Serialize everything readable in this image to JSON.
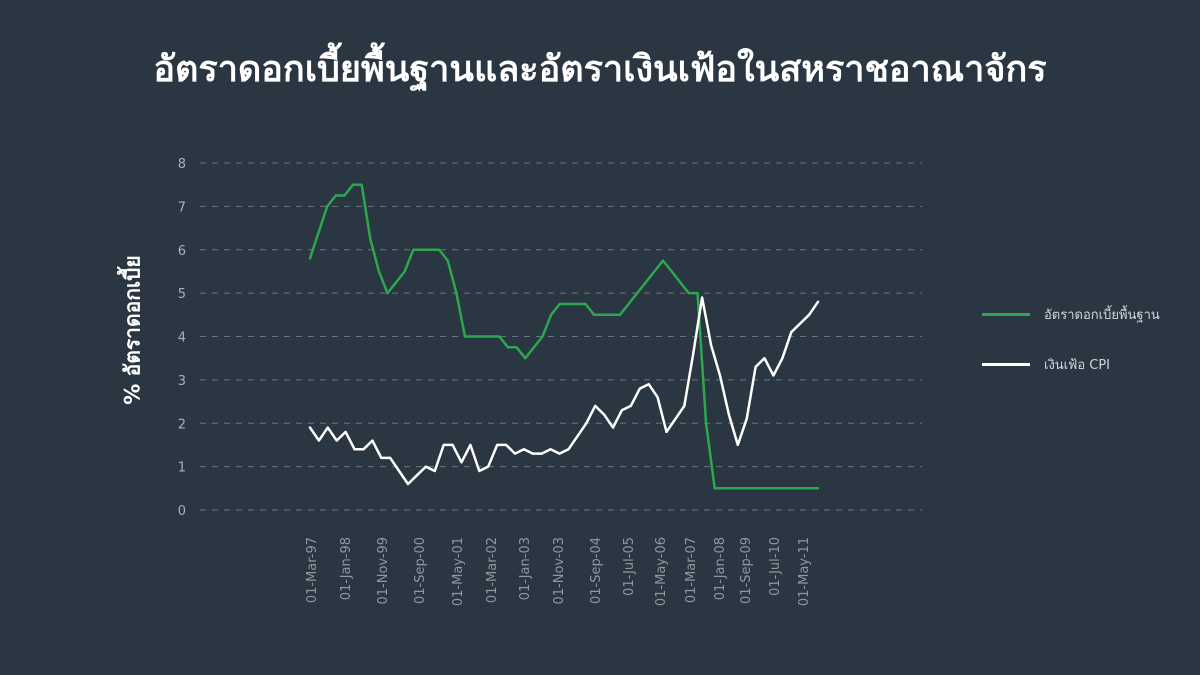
{
  "chart_data": {
    "type": "line",
    "title": "อัตราดอกเบี้ยพื้นฐานและอัตราเงินเฟ้อในสหราชอาณาจักร",
    "xlabel": "",
    "ylabel": "% อัตราดอกเบี้ย",
    "ylim": [
      0,
      8
    ],
    "yticks": [
      0,
      1,
      2,
      3,
      4,
      5,
      6,
      7,
      8
    ],
    "grid": true,
    "legend_position": "right",
    "x_tick_labels": [
      "01-Mar-97",
      "01-Jan-98",
      "01-Nov-99",
      "01-Sep-00",
      "01-May-01",
      "01-Mar-02",
      "01-Jan-03",
      "01-Nov-03",
      "01-Sep-04",
      "01-Jul-05",
      "01-May-06",
      "01-Mar-07",
      "01-Jan-08",
      "01-Sep-09",
      "01-Jul-10",
      "01-May-11"
    ],
    "series": [
      {
        "name": "อัตราดอกเบี้ยพื้นฐาน",
        "color": "#2ea64f",
        "values": [
          5.8,
          6.4,
          7.0,
          7.25,
          7.25,
          7.5,
          7.5,
          6.25,
          5.5,
          5.0,
          5.25,
          5.5,
          6.0,
          6.0,
          6.0,
          6.0,
          5.75,
          5.0,
          4.0,
          4.0,
          4.0,
          4.0,
          4.0,
          3.75,
          3.75,
          3.5,
          3.75,
          4.0,
          4.5,
          4.75,
          4.75,
          4.75,
          4.75,
          4.5,
          4.5,
          4.5,
          4.5,
          4.75,
          5.0,
          5.25,
          5.5,
          5.75,
          5.5,
          5.25,
          5.0,
          5.0,
          2.0,
          0.5,
          0.5,
          0.5,
          0.5,
          0.5,
          0.5,
          0.5,
          0.5,
          0.5,
          0.5,
          0.5,
          0.5,
          0.5
        ]
      },
      {
        "name": "เงินเฟ้อ CPI",
        "color": "#ffffff",
        "values": [
          1.9,
          1.6,
          1.9,
          1.6,
          1.8,
          1.4,
          1.4,
          1.6,
          1.2,
          1.2,
          0.9,
          0.6,
          0.8,
          1.0,
          0.9,
          1.5,
          1.5,
          1.1,
          1.5,
          0.9,
          1.0,
          1.5,
          1.5,
          1.3,
          1.4,
          1.3,
          1.3,
          1.4,
          1.3,
          1.4,
          1.7,
          2.0,
          2.4,
          2.2,
          1.9,
          2.3,
          2.4,
          2.8,
          2.9,
          2.6,
          1.8,
          2.1,
          2.4,
          3.6,
          4.9,
          3.8,
          3.1,
          2.2,
          1.5,
          2.1,
          3.3,
          3.5,
          3.1,
          3.5,
          4.1,
          4.3,
          4.5,
          4.8
        ]
      }
    ]
  }
}
